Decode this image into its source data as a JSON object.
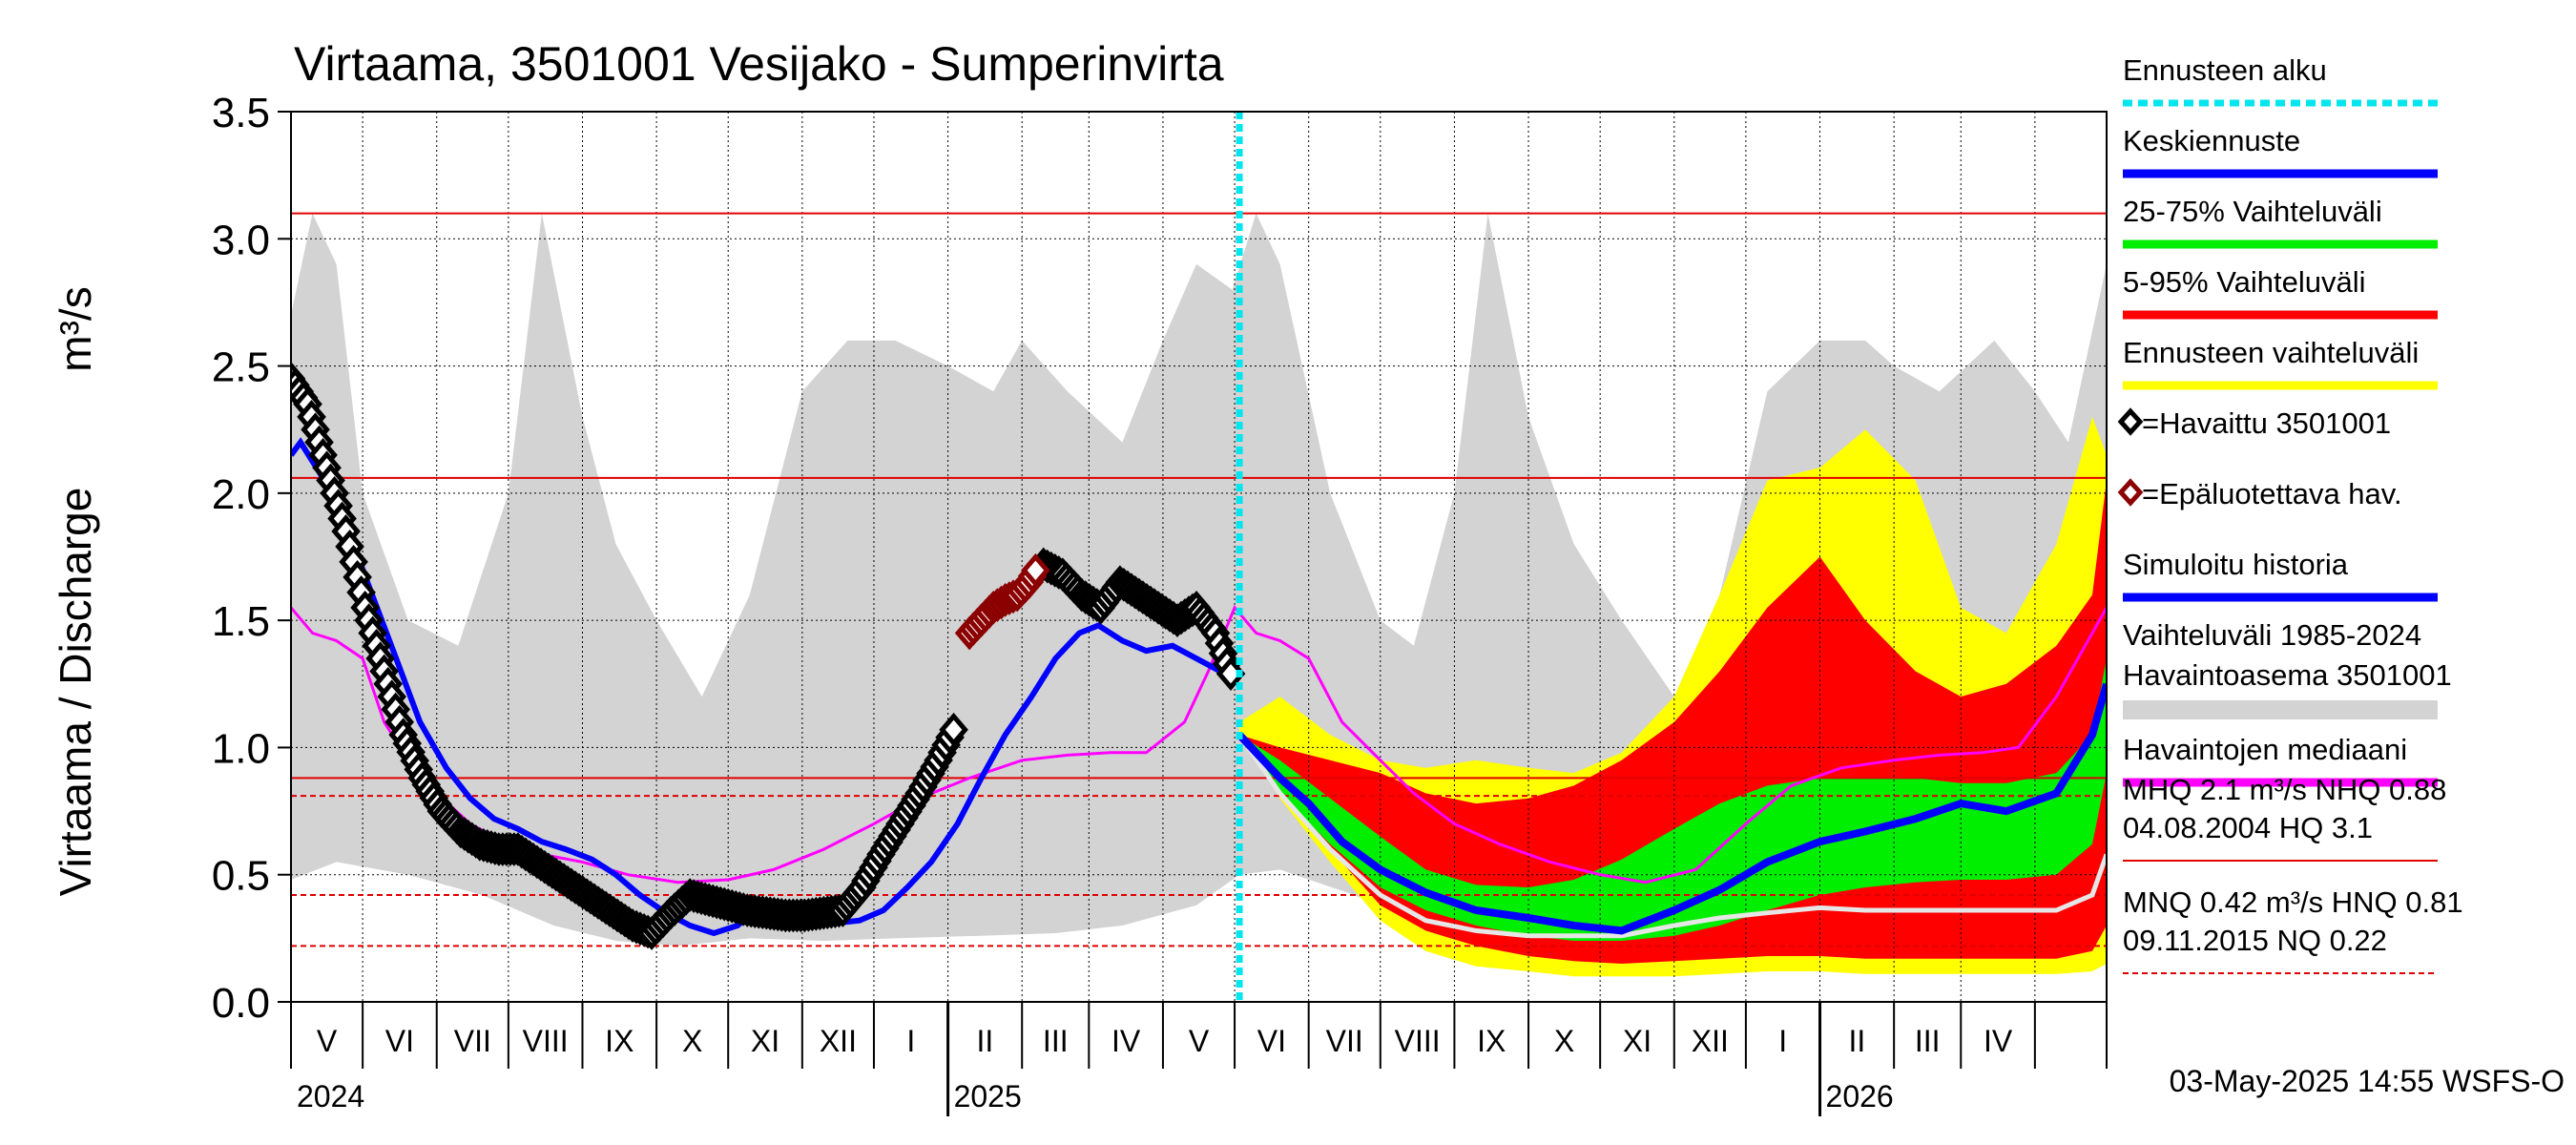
{
  "chart_data": {
    "type": "area",
    "title": "Virtaama, 3501001 Vesijako - Sumperinvirta",
    "ylabel": "Virtaama / Discharge",
    "yunit": "m³/s",
    "ylim": [
      0,
      3.5
    ],
    "yticks": [
      "0.0",
      "0.5",
      "1.0",
      "1.5",
      "2.0",
      "2.5",
      "3.0",
      "3.5"
    ],
    "xlim": [
      "2024-04-01",
      "2026-05-01"
    ],
    "month_labels": [
      "V",
      "VI",
      "VII",
      "VIII",
      "IX",
      "X",
      "XI",
      "XII",
      "I",
      "II",
      "III",
      "IV",
      "V",
      "VI",
      "VII",
      "VIII",
      "IX",
      "X",
      "XI",
      "XII",
      "I",
      "II",
      "III",
      "IV"
    ],
    "year_labels": [
      "2024",
      "2025",
      "2026"
    ],
    "forecast_start": "2025-05-03",
    "reference_lines": [
      {
        "name": "HQ",
        "value": 3.1,
        "style": "solid"
      },
      {
        "name": "MHQ",
        "value": 2.06,
        "style": "solid"
      },
      {
        "name": "NHQ",
        "value": 0.88,
        "style": "solid"
      },
      {
        "name": "HNQ",
        "value": 0.81,
        "style": "dashed"
      },
      {
        "name": "MNQ",
        "value": 0.42,
        "style": "dashed"
      },
      {
        "name": "NQ",
        "value": 0.22,
        "style": "dashed"
      }
    ],
    "legend": [
      {
        "label": "Ennusteen alku",
        "color": "#00e5ee",
        "style": "dotted"
      },
      {
        "label": "Keskiennuste",
        "color": "#0000ff"
      },
      {
        "label": "25-75% Vaihteluväli",
        "color": "#00ee00"
      },
      {
        "label": "5-95% Vaihteluväli",
        "color": "#ff0000"
      },
      {
        "label": "Ennusteen vaihteluväli",
        "color": "#ffff00"
      },
      {
        "label": "=Havaittu 3501001",
        "color": "#000000",
        "marker": "diamond"
      },
      {
        "label": "=Epäluotettava hav.",
        "color": "#8b0000",
        "marker": "diamond"
      },
      {
        "label": "Simuloitu historia",
        "color": "#0000ff"
      },
      {
        "label": "Vaihteluväli 1985-2024",
        "label2": " Havaintoasema 3501001",
        "color": "#d3d3d3"
      },
      {
        "label": "Havaintojen mediaani",
        "color": "#ff00ff"
      }
    ],
    "stats": [
      {
        "line1": "MHQ  2.1 m³/s NHQ 0.88",
        "line2": "04.08.2004 HQ  3.1",
        "style": "solid"
      },
      {
        "line1": "MNQ 0.42 m³/s HNQ 0.81",
        "line2": "09.11.2015 NQ 0.22",
        "style": "dashed"
      }
    ],
    "footer": "03-May-2025 14:55 WSFS-O",
    "series": [
      {
        "name": "Vaihteluväli 1985-2024 (max)",
        "x": [
          "2024-04-01",
          "2024-04-10",
          "2024-04-20",
          "2024-05-01",
          "2024-05-20",
          "2024-06-10",
          "2024-07-01",
          "2024-07-15",
          "2024-08-01",
          "2024-08-15",
          "2024-09-01",
          "2024-09-20",
          "2024-10-10",
          "2024-11-01",
          "2024-11-20",
          "2024-12-10",
          "2025-01-01",
          "2025-01-20",
          "2025-02-01",
          "2025-02-20",
          "2025-03-15",
          "2025-04-01",
          "2025-04-15",
          "2025-04-30",
          "2025-05-10",
          "2025-05-20",
          "2025-06-10",
          "2025-07-01",
          "2025-07-15",
          "2025-08-01",
          "2025-08-15",
          "2025-09-01",
          "2025-09-20",
          "2025-10-10",
          "2025-11-01",
          "2025-11-20",
          "2025-12-10",
          "2026-01-01",
          "2026-01-20",
          "2026-02-01",
          "2026-02-20",
          "2026-03-15",
          "2026-04-01",
          "2026-04-15",
          "2026-05-01"
        ],
        "values": [
          2.7,
          3.1,
          2.9,
          2.0,
          1.5,
          1.4,
          2.0,
          3.1,
          2.3,
          1.8,
          1.5,
          1.2,
          1.6,
          2.4,
          2.6,
          2.6,
          2.5,
          2.4,
          2.6,
          2.4,
          2.2,
          2.6,
          2.9,
          2.8,
          3.1,
          2.9,
          2.0,
          1.5,
          1.4,
          2.0,
          3.1,
          2.3,
          1.8,
          1.5,
          1.2,
          1.6,
          2.4,
          2.6,
          2.6,
          2.5,
          2.4,
          2.6,
          2.4,
          2.2,
          2.9
        ]
      },
      {
        "name": "Vaihteluväli 1985-2024 (min)",
        "x": [
          "2024-04-01",
          "2024-04-20",
          "2024-05-20",
          "2024-06-20",
          "2024-07-20",
          "2024-08-15",
          "2024-09-10",
          "2024-10-10",
          "2024-11-10",
          "2024-12-10",
          "2025-01-15",
          "2025-02-15",
          "2025-03-15",
          "2025-04-15",
          "2025-05-03",
          "2025-05-20",
          "2025-06-20",
          "2025-07-20",
          "2025-08-15",
          "2025-09-10",
          "2025-10-10",
          "2025-11-10",
          "2025-12-10",
          "2026-01-15",
          "2026-02-15",
          "2026-03-15",
          "2026-04-15",
          "2026-05-01"
        ],
        "values": [
          0.48,
          0.55,
          0.5,
          0.42,
          0.3,
          0.24,
          0.22,
          0.25,
          0.24,
          0.25,
          0.26,
          0.27,
          0.3,
          0.38,
          0.5,
          0.52,
          0.42,
          0.3,
          0.24,
          0.22,
          0.25,
          0.24,
          0.25,
          0.26,
          0.27,
          0.3,
          0.38,
          0.45
        ]
      },
      {
        "name": "Havaintojen mediaani",
        "x": [
          "2024-04-01",
          "2024-04-10",
          "2024-04-20",
          "2024-05-01",
          "2024-05-10",
          "2024-05-20",
          "2024-06-01",
          "2024-06-15",
          "2024-07-01",
          "2024-07-15",
          "2024-08-01",
          "2024-08-20",
          "2024-09-10",
          "2024-10-01",
          "2024-10-20",
          "2024-11-10",
          "2024-12-01",
          "2024-12-20",
          "2025-01-10",
          "2025-02-01",
          "2025-02-20",
          "2025-03-10",
          "2025-03-25",
          "2025-04-10",
          "2025-04-20",
          "2025-05-01",
          "2025-05-10",
          "2025-05-20",
          "2025-06-01",
          "2025-06-15",
          "2025-07-01",
          "2025-07-15",
          "2025-08-01",
          "2025-08-20",
          "2025-09-10",
          "2025-10-01",
          "2025-10-20",
          "2025-11-10",
          "2025-12-01",
          "2025-12-20",
          "2026-01-10",
          "2026-02-01",
          "2026-02-20",
          "2026-03-10",
          "2026-03-25",
          "2026-04-10",
          "2026-04-25",
          "2026-05-01"
        ],
        "values": [
          1.55,
          1.45,
          1.42,
          1.35,
          1.1,
          0.95,
          0.82,
          0.7,
          0.62,
          0.58,
          0.55,
          0.5,
          0.47,
          0.48,
          0.52,
          0.6,
          0.7,
          0.8,
          0.88,
          0.95,
          0.97,
          0.98,
          0.98,
          1.1,
          1.3,
          1.55,
          1.45,
          1.42,
          1.35,
          1.1,
          0.95,
          0.82,
          0.7,
          0.62,
          0.55,
          0.5,
          0.47,
          0.52,
          0.7,
          0.85,
          0.92,
          0.95,
          0.97,
          0.98,
          1.0,
          1.2,
          1.45,
          1.55
        ]
      },
      {
        "name": "Simuloitu historia",
        "x": [
          "2024-04-01",
          "2024-04-05",
          "2024-04-15",
          "2024-04-25",
          "2024-05-05",
          "2024-05-15",
          "2024-05-25",
          "2024-06-05",
          "2024-06-15",
          "2024-06-25",
          "2024-07-05",
          "2024-07-15",
          "2024-07-25",
          "2024-08-05",
          "2024-08-15",
          "2024-08-25",
          "2024-09-05",
          "2024-09-15",
          "2024-09-25",
          "2024-10-05",
          "2024-10-15",
          "2024-10-25",
          "2024-11-05",
          "2024-11-15",
          "2024-11-25",
          "2024-12-05",
          "2024-12-15",
          "2024-12-25",
          "2025-01-05",
          "2025-01-15",
          "2025-01-25",
          "2025-02-05",
          "2025-02-15",
          "2025-02-25",
          "2025-03-05",
          "2025-03-15",
          "2025-03-25",
          "2025-04-05",
          "2025-04-15",
          "2025-04-25",
          "2025-05-03"
        ],
        "values": [
          2.15,
          2.2,
          2.05,
          1.85,
          1.6,
          1.35,
          1.1,
          0.92,
          0.8,
          0.72,
          0.68,
          0.63,
          0.6,
          0.56,
          0.5,
          0.42,
          0.35,
          0.3,
          0.27,
          0.3,
          0.38,
          0.35,
          0.32,
          0.31,
          0.32,
          0.36,
          0.45,
          0.55,
          0.7,
          0.88,
          1.05,
          1.2,
          1.35,
          1.45,
          1.48,
          1.42,
          1.38,
          1.4,
          1.35,
          1.3,
          1.32
        ]
      },
      {
        "name": "Keskiennuste",
        "x": [
          "2025-05-03",
          "2025-05-10",
          "2025-05-20",
          "2025-06-01",
          "2025-06-15",
          "2025-07-01",
          "2025-07-20",
          "2025-08-10",
          "2025-09-01",
          "2025-09-20",
          "2025-10-10",
          "2025-11-01",
          "2025-11-20",
          "2025-12-10",
          "2026-01-01",
          "2026-01-20",
          "2026-02-10",
          "2026-03-01",
          "2026-03-20",
          "2026-04-10",
          "2026-04-25",
          "2026-05-01"
        ],
        "values": [
          1.05,
          0.98,
          0.88,
          0.78,
          0.63,
          0.52,
          0.43,
          0.36,
          0.33,
          0.3,
          0.28,
          0.36,
          0.44,
          0.55,
          0.63,
          0.67,
          0.72,
          0.78,
          0.75,
          0.82,
          1.05,
          1.25
        ]
      },
      {
        "name": "5-95% Vaihteluväli (yläraja)",
        "x": [
          "2025-05-03",
          "2025-05-20",
          "2025-06-10",
          "2025-07-01",
          "2025-07-20",
          "2025-08-10",
          "2025-09-01",
          "2025-09-20",
          "2025-10-10",
          "2025-11-01",
          "2025-11-20",
          "2025-12-10",
          "2026-01-01",
          "2026-01-20",
          "2026-02-10",
          "2026-03-01",
          "2026-03-20",
          "2026-04-10",
          "2026-04-25",
          "2026-05-01"
        ],
        "values": [
          1.05,
          1.0,
          0.95,
          0.9,
          0.82,
          0.78,
          0.8,
          0.85,
          0.95,
          1.1,
          1.3,
          1.55,
          1.75,
          1.5,
          1.3,
          1.2,
          1.25,
          1.4,
          1.6,
          2.05
        ]
      },
      {
        "name": "5-95% Vaihteluväli (alaraja)",
        "x": [
          "2025-05-03",
          "2025-05-20",
          "2025-06-10",
          "2025-07-01",
          "2025-07-20",
          "2025-08-10",
          "2025-09-01",
          "2025-09-20",
          "2025-10-10",
          "2025-11-01",
          "2025-11-20",
          "2025-12-10",
          "2026-01-01",
          "2026-01-20",
          "2026-02-10",
          "2026-03-01",
          "2026-03-20",
          "2026-04-10",
          "2026-04-25",
          "2026-05-01"
        ],
        "values": [
          1.05,
          0.85,
          0.6,
          0.38,
          0.28,
          0.22,
          0.18,
          0.16,
          0.15,
          0.16,
          0.17,
          0.18,
          0.18,
          0.17,
          0.17,
          0.17,
          0.17,
          0.17,
          0.2,
          0.3
        ]
      },
      {
        "name": "Ennusteen vaihteluväli (yläraja)",
        "x": [
          "2025-05-03",
          "2025-05-20",
          "2025-06-10",
          "2025-07-01",
          "2025-07-20",
          "2025-08-10",
          "2025-09-01",
          "2025-09-20",
          "2025-10-10",
          "2025-11-01",
          "2025-11-20",
          "2025-12-10",
          "2026-01-01",
          "2026-01-20",
          "2026-02-10",
          "2026-03-01",
          "2026-03-20",
          "2026-04-10",
          "2026-04-25",
          "2026-05-01"
        ],
        "values": [
          1.1,
          1.2,
          1.05,
          0.95,
          0.92,
          0.95,
          0.92,
          0.9,
          0.98,
          1.2,
          1.6,
          2.05,
          2.1,
          2.25,
          2.05,
          1.55,
          1.45,
          1.8,
          2.3,
          2.15
        ]
      },
      {
        "name": "Ennusteen vaihteluväli (alaraja)",
        "x": [
          "2025-05-03",
          "2025-05-20",
          "2025-06-10",
          "2025-07-01",
          "2025-07-20",
          "2025-08-10",
          "2025-09-01",
          "2025-09-20",
          "2025-10-10",
          "2025-11-01",
          "2025-11-20",
          "2025-12-10",
          "2026-01-01",
          "2026-01-20",
          "2026-02-10",
          "2026-03-01",
          "2026-03-20",
          "2026-04-10",
          "2026-04-25",
          "2026-05-01"
        ],
        "values": [
          1.05,
          0.8,
          0.55,
          0.32,
          0.2,
          0.14,
          0.12,
          0.1,
          0.1,
          0.1,
          0.11,
          0.12,
          0.12,
          0.11,
          0.11,
          0.11,
          0.11,
          0.11,
          0.12,
          0.15
        ]
      },
      {
        "name": "25-75% Vaihteluväli (yläraja)",
        "x": [
          "2025-05-03",
          "2025-05-20",
          "2025-06-10",
          "2025-07-01",
          "2025-07-20",
          "2025-08-10",
          "2025-09-01",
          "2025-09-20",
          "2025-10-10",
          "2025-11-01",
          "2025-11-20",
          "2025-12-10",
          "2026-01-01",
          "2026-01-20",
          "2026-02-10",
          "2026-03-01",
          "2026-03-20",
          "2026-04-10",
          "2026-04-25",
          "2026-05-01"
        ],
        "values": [
          1.05,
          0.95,
          0.8,
          0.65,
          0.52,
          0.46,
          0.45,
          0.48,
          0.56,
          0.68,
          0.78,
          0.85,
          0.88,
          0.88,
          0.88,
          0.86,
          0.86,
          0.9,
          1.05,
          1.35
        ]
      },
      {
        "name": "25-75% Vaihteluväli (alaraja)",
        "x": [
          "2025-05-03",
          "2025-05-20",
          "2025-06-10",
          "2025-07-01",
          "2025-07-20",
          "2025-08-10",
          "2025-09-01",
          "2025-09-20",
          "2025-10-10",
          "2025-11-01",
          "2025-11-20",
          "2025-12-10",
          "2026-01-01",
          "2026-01-20",
          "2026-02-10",
          "2026-03-01",
          "2026-03-20",
          "2026-04-10",
          "2026-04-25",
          "2026-05-01"
        ],
        "values": [
          1.05,
          0.82,
          0.62,
          0.45,
          0.36,
          0.3,
          0.26,
          0.24,
          0.24,
          0.26,
          0.3,
          0.36,
          0.42,
          0.45,
          0.47,
          0.48,
          0.48,
          0.5,
          0.62,
          0.9
        ]
      },
      {
        "name": "Simuloitu ennuste",
        "x": [
          "2025-05-03",
          "2025-05-20",
          "2025-06-10",
          "2025-07-01",
          "2025-07-20",
          "2025-08-10",
          "2025-09-01",
          "2025-09-20",
          "2025-10-10",
          "2025-11-01",
          "2025-11-20",
          "2025-12-10",
          "2026-01-01",
          "2026-01-20",
          "2026-02-10",
          "2026-03-01",
          "2026-03-20",
          "2026-04-10",
          "2026-04-25",
          "2026-05-01"
        ],
        "values": [
          1.05,
          0.82,
          0.6,
          0.42,
          0.32,
          0.28,
          0.26,
          0.26,
          0.26,
          0.3,
          0.33,
          0.35,
          0.37,
          0.36,
          0.36,
          0.36,
          0.36,
          0.36,
          0.42,
          0.58
        ]
      },
      {
        "name": "Havaittu 3501001",
        "x": [
          "2024-04-01",
          "2024-04-08",
          "2024-04-16",
          "2024-04-24",
          "2024-05-02",
          "2024-05-10",
          "2024-05-18",
          "2024-05-26",
          "2024-06-03",
          "2024-06-11",
          "2024-06-19",
          "2024-06-27",
          "2024-07-05",
          "2024-07-13",
          "2024-07-21",
          "2024-07-29",
          "2024-08-06",
          "2024-08-14",
          "2024-08-22",
          "2024-08-30",
          "2024-09-07",
          "2024-09-15",
          "2024-09-23",
          "2024-10-01",
          "2024-10-09",
          "2024-10-17",
          "2024-10-25",
          "2024-11-02",
          "2024-11-10",
          "2024-11-18",
          "2024-11-26",
          "2024-12-04",
          "2024-12-12",
          "2024-12-20",
          "2024-12-28",
          "2025-01-05",
          "2025-02-10",
          "2025-02-18",
          "2025-02-26",
          "2025-03-06",
          "2025-03-14",
          "2025-03-22",
          "2025-03-30",
          "2025-04-07",
          "2025-04-15",
          "2025-04-23",
          "2025-05-01"
        ],
        "values": [
          2.45,
          2.35,
          2.1,
          1.85,
          1.55,
          1.3,
          1.05,
          0.88,
          0.75,
          0.67,
          0.62,
          0.6,
          0.6,
          0.55,
          0.5,
          0.45,
          0.4,
          0.35,
          0.3,
          0.27,
          0.35,
          0.42,
          0.4,
          0.38,
          0.36,
          0.35,
          0.34,
          0.34,
          0.35,
          0.36,
          0.45,
          0.58,
          0.7,
          0.82,
          0.95,
          1.1,
          1.72,
          1.68,
          1.6,
          1.55,
          1.65,
          1.6,
          1.55,
          1.5,
          1.55,
          1.45,
          1.25
        ]
      },
      {
        "name": "Epäluotettava hav.",
        "x": [
          "2025-01-10",
          "2025-01-15",
          "2025-01-20",
          "2025-01-25",
          "2025-01-30",
          "2025-02-04",
          "2025-02-08"
        ],
        "values": [
          1.45,
          1.5,
          1.55,
          1.58,
          1.6,
          1.65,
          1.72
        ]
      }
    ]
  }
}
